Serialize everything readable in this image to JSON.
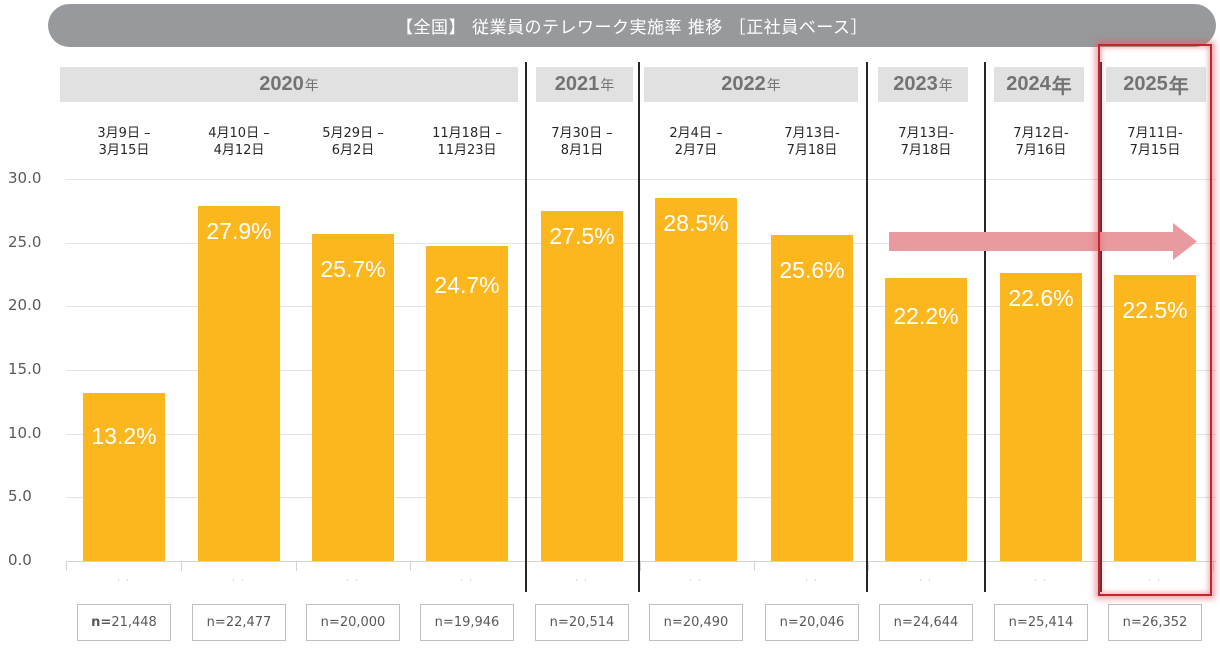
{
  "title": "【全国】 従業員のテレワーク実施率  推移 ［正社員ベース］",
  "years": [
    {
      "year": "2020",
      "suffix": "年",
      "bold_suffix": false
    },
    {
      "year": "2021",
      "suffix": "年",
      "bold_suffix": false
    },
    {
      "year": "2022",
      "suffix": "年",
      "bold_suffix": false
    },
    {
      "year": "2023",
      "suffix": "年",
      "bold_suffix": false
    },
    {
      "year": "2024",
      "suffix": "年",
      "bold_suffix": true
    },
    {
      "year": "2025",
      "suffix": "年",
      "bold_suffix": true
    }
  ],
  "colors": {
    "bar": "#fdb71e",
    "title_bg": "#97999c",
    "year_bg": "#e1e1e1",
    "arrow": "#e89a9f",
    "highlight": "#c0272d"
  },
  "highlighted_year": "2025",
  "trend_arrow": {
    "from_year": "2023",
    "to_year": "2025",
    "meaning": "flat trend"
  },
  "chart_data": {
    "type": "bar",
    "title": "【全国】 従業員のテレワーク実施率  推移 ［正社員ベース］",
    "xlabel": "",
    "ylabel": "",
    "ylim": [
      0,
      30
    ],
    "yticks": [
      "0.0",
      "5.0",
      "10.0",
      "15.0",
      "20.0",
      "25.0",
      "30.0"
    ],
    "grid": true,
    "categories": [
      "3月9日 –\n3月15日",
      "4月10日 –\n4月12日",
      "5月29日 –\n6月2日",
      "11月18日 –\n11月23日",
      "7月30日 –\n8月1日",
      "2月4日 –\n2月7日",
      "7月13日-\n7月18日",
      "7月13日-\n7月18日",
      "7月12日-\n7月16日",
      "7月11日-\n7月15日"
    ],
    "category_years": [
      "2020",
      "2020",
      "2020",
      "2020",
      "2021",
      "2022",
      "2022",
      "2023",
      "2024",
      "2025"
    ],
    "values": [
      13.2,
      27.9,
      25.7,
      24.7,
      27.5,
      28.5,
      25.6,
      22.2,
      22.6,
      22.5
    ],
    "data_labels": [
      "13.2%",
      "27.9%",
      "25.7%",
      "24.7%",
      "27.5%",
      "28.5%",
      "25.6%",
      "22.2%",
      "22.6%",
      "22.5%"
    ],
    "sample_sizes": [
      {
        "prefix": "n=",
        "value": "21,448",
        "bold_prefix": true
      },
      {
        "prefix": "n= ",
        "value": "22,477",
        "bold_prefix": false
      },
      {
        "prefix": "n= ",
        "value": "20,000",
        "bold_prefix": false
      },
      {
        "prefix": "n= ",
        "value": "19,946",
        "bold_prefix": false
      },
      {
        "prefix": "n=",
        "value": "20,514",
        "bold_prefix": false
      },
      {
        "prefix": "n= ",
        "value": "20,490",
        "bold_prefix": false
      },
      {
        "prefix": "n= ",
        "value": "20,046",
        "bold_prefix": false
      },
      {
        "prefix": "n= ",
        "value": "24,644",
        "bold_prefix": false
      },
      {
        "prefix": "n= ",
        "value": "25,414",
        "bold_prefix": false
      },
      {
        "prefix": "n= ",
        "value": "26,352",
        "bold_prefix": false
      }
    ]
  }
}
